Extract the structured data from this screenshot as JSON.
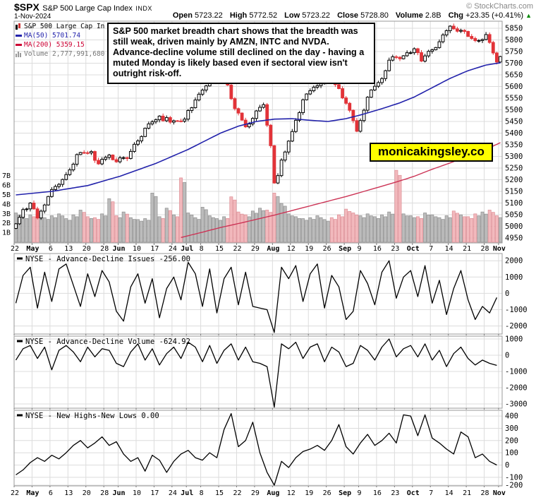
{
  "header": {
    "symbol": "$SPX",
    "name": "S&P 500 Large Cap Index",
    "exchange": "INDX",
    "date": "1-Nov-2024",
    "copyright": "© StockCharts.com",
    "quote": {
      "items": [
        {
          "label": "Open",
          "value": "5723.22"
        },
        {
          "label": "High",
          "value": "5772.52"
        },
        {
          "label": "Low",
          "value": "5723.22"
        },
        {
          "label": "Close",
          "value": "5728.80"
        },
        {
          "label": "Volume",
          "value": "2.8B"
        },
        {
          "label": "Chg",
          "value": "+23.35 (+0.41%)"
        }
      ],
      "arrow": "▲"
    }
  },
  "legend": {
    "items": [
      {
        "label": "S&P 500 Large Cap In",
        "color": "#000000"
      },
      {
        "label": "MA(50) 5701.74",
        "color": "#2222ab"
      },
      {
        "label": "MA(200) 5359.15",
        "color": "#cc0033"
      },
      {
        "label": "Volume 2,777,991,680",
        "color": "#777777"
      }
    ]
  },
  "annotation": {
    "text": "S&P 500 market breadth chart shows that the breadth was still weak, driven mainly by AMZN, INTC and NVDA. Advance-decline volume still declined on the day - having a muted Monday is likely based even if sectoral view isn't outright risk-off."
  },
  "watermark": {
    "text": "monicakingsley.co",
    "bg": "#ffff00"
  },
  "chart_data": {
    "type": "candlestick",
    "title": "$SPX daily with MA(50), MA(200), volume and NYSE breadth panels",
    "n_days": 136,
    "x_ticks": {
      "indices": [
        0,
        5,
        10,
        15,
        20,
        25,
        29,
        34,
        39,
        44,
        48,
        52,
        57,
        62,
        67,
        72,
        77,
        82,
        87,
        92,
        96,
        101,
        106,
        111,
        116,
        121,
        126,
        131,
        135
      ],
      "labels": [
        "22",
        "May",
        "6",
        "13",
        "20",
        "28",
        "Jun",
        "10",
        "17",
        "24",
        "Jul",
        "8",
        "15",
        "22",
        "29",
        "Aug",
        "12",
        "19",
        "26",
        "Sep",
        "9",
        "16",
        "23",
        "Oct",
        "7",
        "14",
        "21",
        "28",
        "Nov"
      ]
    },
    "main": {
      "y_axis": {
        "min": 4950,
        "max": 5850,
        "step": 50
      },
      "close_anchors": [
        [
          0,
          5011
        ],
        [
          2,
          5072
        ],
        [
          4,
          5100
        ],
        [
          6,
          5036
        ],
        [
          9,
          5128
        ],
        [
          12,
          5180
        ],
        [
          14,
          5222
        ],
        [
          17,
          5308
        ],
        [
          21,
          5321
        ],
        [
          23,
          5268
        ],
        [
          26,
          5306
        ],
        [
          28,
          5277
        ],
        [
          31,
          5291
        ],
        [
          33,
          5352
        ],
        [
          36,
          5421
        ],
        [
          40,
          5473
        ],
        [
          43,
          5447
        ],
        [
          47,
          5460
        ],
        [
          49,
          5509
        ],
        [
          51,
          5567
        ],
        [
          54,
          5633
        ],
        [
          58,
          5667
        ],
        [
          61,
          5505
        ],
        [
          64,
          5427
        ],
        [
          66,
          5463
        ],
        [
          69,
          5522
        ],
        [
          71,
          5346
        ],
        [
          72,
          5186
        ],
        [
          75,
          5319
        ],
        [
          78,
          5455
        ],
        [
          80,
          5543
        ],
        [
          83,
          5597
        ],
        [
          86,
          5634
        ],
        [
          88,
          5625
        ],
        [
          90,
          5591
        ],
        [
          92,
          5528
        ],
        [
          95,
          5408
        ],
        [
          98,
          5554
        ],
        [
          102,
          5634
        ],
        [
          104,
          5713
        ],
        [
          107,
          5719
        ],
        [
          109,
          5745
        ],
        [
          111,
          5762
        ],
        [
          113,
          5709
        ],
        [
          115,
          5751
        ],
        [
          118,
          5792
        ],
        [
          121,
          5859
        ],
        [
          124,
          5841
        ],
        [
          126,
          5815
        ],
        [
          128,
          5797
        ],
        [
          131,
          5823
        ],
        [
          133,
          5744
        ],
        [
          134,
          5705
        ],
        [
          135,
          5728.8
        ]
      ],
      "ma50_anchors": [
        [
          0,
          5135
        ],
        [
          10,
          5150
        ],
        [
          20,
          5175
        ],
        [
          29,
          5215
        ],
        [
          39,
          5270
        ],
        [
          48,
          5330
        ],
        [
          57,
          5400
        ],
        [
          62,
          5430
        ],
        [
          67,
          5450
        ],
        [
          72,
          5460
        ],
        [
          77,
          5462
        ],
        [
          82,
          5455
        ],
        [
          87,
          5450
        ],
        [
          92,
          5462
        ],
        [
          97,
          5482
        ],
        [
          102,
          5505
        ],
        [
          107,
          5530
        ],
        [
          111,
          5555
        ],
        [
          116,
          5595
        ],
        [
          121,
          5635
        ],
        [
          126,
          5668
        ],
        [
          131,
          5692
        ],
        [
          135,
          5701.74
        ]
      ],
      "ma200_anchors": [
        [
          46,
          4952
        ],
        [
          52,
          4975
        ],
        [
          57,
          4995
        ],
        [
          62,
          5012
        ],
        [
          67,
          5030
        ],
        [
          72,
          5048
        ],
        [
          77,
          5068
        ],
        [
          82,
          5088
        ],
        [
          87,
          5108
        ],
        [
          92,
          5128
        ],
        [
          97,
          5150
        ],
        [
          102,
          5172
        ],
        [
          107,
          5195
        ],
        [
          111,
          5215
        ],
        [
          116,
          5245
        ],
        [
          121,
          5272
        ],
        [
          126,
          5300
        ],
        [
          131,
          5330
        ],
        [
          135,
          5359.15
        ]
      ],
      "ma50_last": 5701.74,
      "ma200_last": 5359.15,
      "volume_axis_labels": [
        "7B",
        "6B",
        "5B",
        "4B",
        "3B",
        "2B",
        "1B"
      ],
      "volume_2day_billions": [
        3.1,
        2.7,
        2.9,
        3.3,
        2.6,
        2.8,
        3.0,
        2.5,
        2.9,
        3.4,
        2.7,
        2.6,
        3.0,
        4.6,
        2.8,
        3.2,
        2.6,
        2.4,
        2.5,
        5.2,
        2.7,
        3.6,
        2.9,
        6.8,
        3.1,
        2.6,
        3.7,
        2.8,
        2.5,
        2.7,
        4.8,
        3.2,
        2.9,
        3.3,
        3.6,
        3.4,
        5.2,
        4.1,
        3.0,
        2.7,
        2.5,
        2.6,
        2.8,
        2.4,
        2.6,
        2.9,
        3.5,
        3.1,
        2.8,
        3.0,
        2.7,
        2.9,
        3.2,
        7.6,
        3.0,
        2.8,
        2.7,
        3.1,
        2.9,
        2.6,
        2.8,
        3.3,
        2.9,
        2.7,
        3.0,
        3.2,
        3.4,
        2.8
      ],
      "colors": {
        "up_candle": "#ffffff",
        "up_stroke": "#000000",
        "down_candle": "#e23338",
        "ma50": "#2222ab",
        "ma200": "#cc3355",
        "vol_up": "#b9b9b9",
        "vol_up_stroke": "#8a8a8a",
        "vol_down": "#f2b6ba",
        "vol_down_stroke": "#dd8890",
        "grid": "#dcdcdc",
        "border": "#999999"
      }
    },
    "panels": [
      {
        "title": "NYSE - Advance-Decline Issues",
        "last": "-256.00",
        "ylabels": [
          2000,
          1000,
          0,
          -1000,
          -2000
        ],
        "series_2day": [
          -600,
          1100,
          1600,
          -900,
          1300,
          -500,
          1500,
          1800,
          500,
          -800,
          1200,
          -200,
          1400,
          700,
          -1100,
          -1700,
          400,
          1200,
          -600,
          900,
          -1500,
          300,
          1000,
          -400,
          1900,
          1200,
          -800,
          1500,
          -1200,
          900,
          1600,
          -700,
          1300,
          -800,
          -900,
          -1000,
          -2400,
          1600,
          900,
          1700,
          -500,
          1200,
          1800,
          -900,
          1100,
          400,
          -1600,
          -1100,
          1400,
          600,
          -700,
          1300,
          2000,
          -300,
          1000,
          1400,
          -200,
          1700,
          -600,
          800,
          -1300,
          300,
          1400,
          -400,
          -1600,
          -800,
          -1200,
          -256
        ]
      },
      {
        "title": "NYSE - Advance-Decline Volume",
        "last": "-624.92",
        "ylabels": [
          1000,
          0,
          -1000,
          -2000,
          -3000
        ],
        "series_2day": [
          -300,
          400,
          600,
          -200,
          500,
          -900,
          300,
          600,
          200,
          -400,
          500,
          -100,
          400,
          300,
          -500,
          -700,
          200,
          700,
          -300,
          400,
          -600,
          100,
          500,
          -200,
          800,
          500,
          -400,
          600,
          -500,
          300,
          700,
          -300,
          500,
          -400,
          -500,
          -700,
          -3200,
          700,
          400,
          800,
          -200,
          500,
          700,
          -400,
          500,
          200,
          -700,
          -500,
          600,
          300,
          -300,
          500,
          1000,
          -100,
          400,
          600,
          -100,
          700,
          -300,
          300,
          -700,
          100,
          500,
          -200,
          -600,
          -300,
          -500,
          -624.92
        ]
      },
      {
        "title": "NYSE - New Highs-New Lows",
        "last": "0.00",
        "ylabels": [
          400,
          300,
          200,
          100,
          0,
          -100,
          -200
        ],
        "series_2day": [
          -80,
          -40,
          20,
          60,
          30,
          80,
          50,
          100,
          160,
          200,
          140,
          180,
          230,
          160,
          190,
          90,
          30,
          60,
          -50,
          80,
          40,
          -60,
          30,
          90,
          120,
          60,
          40,
          100,
          60,
          290,
          420,
          150,
          200,
          350,
          100,
          -60,
          -190,
          30,
          -20,
          60,
          110,
          130,
          160,
          120,
          200,
          330,
          150,
          90,
          180,
          250,
          160,
          200,
          260,
          180,
          410,
          400,
          240,
          410,
          220,
          180,
          130,
          90,
          270,
          230,
          60,
          90,
          30,
          0
        ]
      }
    ]
  }
}
